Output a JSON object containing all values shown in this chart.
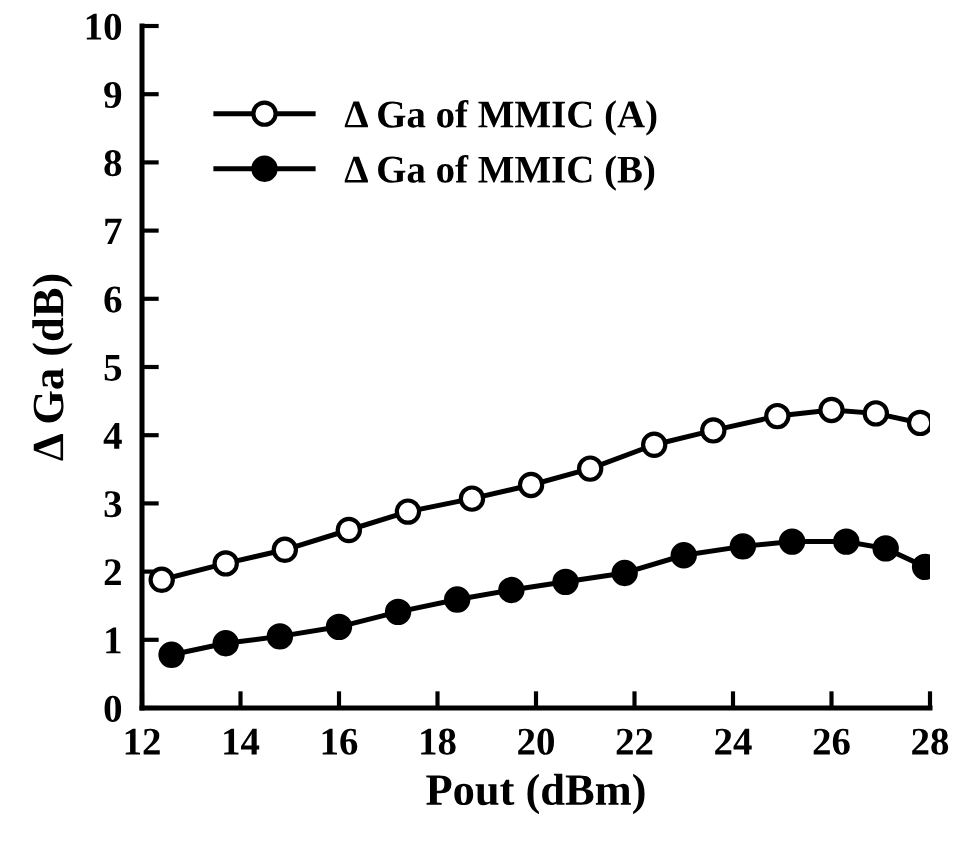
{
  "chart_data": {
    "type": "line",
    "xlabel": "Pout (dBm)",
    "ylabel": "Δ Ga (dB)",
    "xlim": [
      12,
      28
    ],
    "xticks": [
      12,
      14,
      16,
      18,
      20,
      22,
      24,
      26,
      28
    ],
    "ylim": [
      0,
      10
    ],
    "yticks": [
      0,
      1,
      2,
      3,
      4,
      5,
      6,
      7,
      8,
      9,
      10
    ],
    "grid": false,
    "legend": "top left",
    "series": [
      {
        "name": "Δ Ga of MMIC (A)",
        "color": "#ffffff",
        "marker": "circle",
        "x": [
          12.4,
          13.7,
          14.9,
          16.2,
          17.4,
          18.7,
          19.9,
          21.1,
          22.4,
          23.6,
          24.9,
          26.0,
          26.9,
          27.8
        ],
        "values": [
          1.88,
          2.12,
          2.32,
          2.61,
          2.88,
          3.07,
          3.27,
          3.51,
          3.86,
          4.07,
          4.28,
          4.37,
          4.32,
          4.18
        ]
      },
      {
        "name": "Δ Ga of MMIC (B)",
        "color": "#000000",
        "marker": "circle",
        "x": [
          12.6,
          13.7,
          14.8,
          16.0,
          17.2,
          18.4,
          19.5,
          20.6,
          21.8,
          23.0,
          24.2,
          25.2,
          26.3,
          27.1,
          27.9
        ],
        "values": [
          0.78,
          0.95,
          1.05,
          1.19,
          1.41,
          1.59,
          1.73,
          1.85,
          1.98,
          2.24,
          2.37,
          2.44,
          2.44,
          2.34,
          2.07
        ]
      }
    ]
  }
}
